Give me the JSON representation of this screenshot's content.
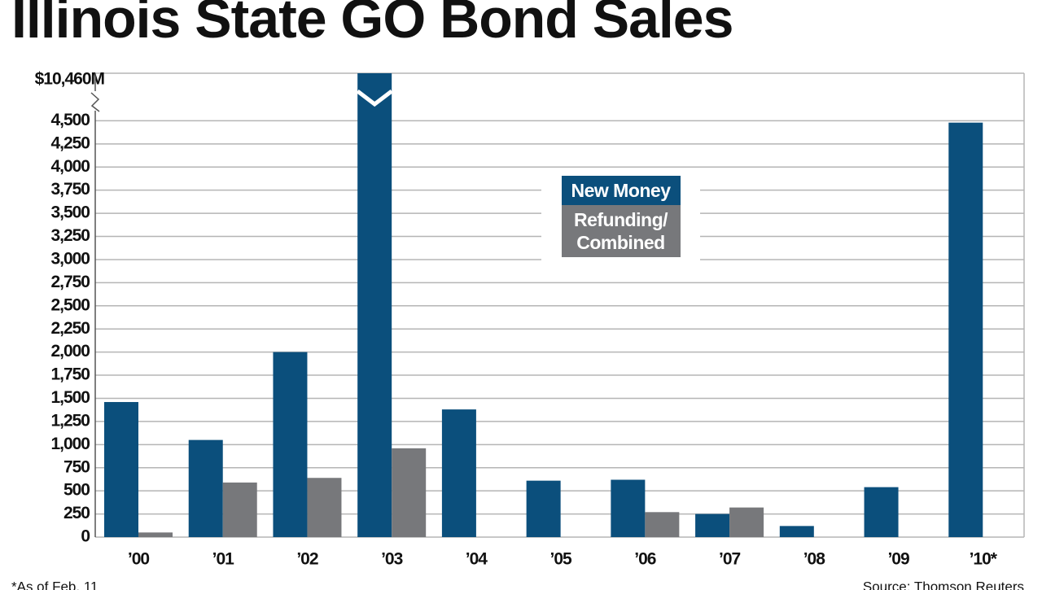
{
  "chart_data": {
    "type": "bar",
    "title": "Illinois State GO Bond Sales",
    "categories": [
      "’00",
      "’01",
      "’02",
      "’03",
      "’04",
      "’05",
      "’06",
      "’07",
      "’08",
      "’09",
      "’10*"
    ],
    "series": [
      {
        "name": "New Money",
        "color": "#0b4f7c",
        "values": [
          1460,
          1050,
          2000,
          10460,
          1380,
          610,
          620,
          250,
          120,
          540,
          4480
        ]
      },
      {
        "name": "Refunding/ Combined",
        "color": "#77787b",
        "values": [
          50,
          590,
          640,
          960,
          null,
          null,
          270,
          320,
          null,
          null,
          null
        ]
      }
    ],
    "ylim": [
      0,
      10460
    ],
    "y_break": 4750,
    "yticks": [
      0,
      250,
      500,
      750,
      {
        "value": 1000,
        "label": "1,000"
      },
      {
        "value": 1250,
        "label": "1,250"
      },
      {
        "value": 1500,
        "label": "1,500"
      },
      {
        "value": 1750,
        "label": "1,750"
      },
      {
        "value": 2000,
        "label": "2,000"
      },
      {
        "value": 2250,
        "label": "2,250"
      },
      {
        "value": 2500,
        "label": "2,500"
      },
      {
        "value": 2750,
        "label": "2,750"
      },
      {
        "value": 3000,
        "label": "3,000"
      },
      {
        "value": 3250,
        "label": "3,250"
      },
      {
        "value": 3500,
        "label": "3,500"
      },
      {
        "value": 3750,
        "label": "3,750"
      },
      {
        "value": 4000,
        "label": "4,000"
      },
      {
        "value": 4250,
        "label": "4,250"
      },
      {
        "value": 4500,
        "label": "4,500"
      },
      {
        "value": 10460,
        "label": "$10,460M"
      }
    ],
    "grid": true,
    "footnote": "*As of Feb. 11",
    "source": "Source: Thomson Reuters"
  }
}
